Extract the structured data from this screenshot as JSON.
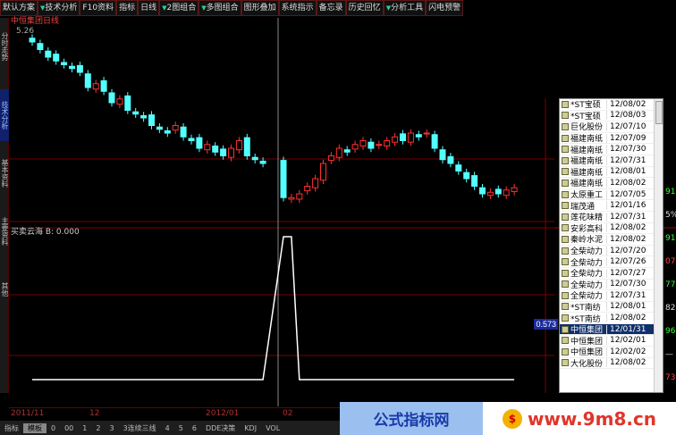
{
  "toolbar": [
    {
      "label": "默认方案",
      "arrow": false
    },
    {
      "label": "技术分析",
      "arrow": true
    },
    {
      "label": "F10资料",
      "arrow": false
    },
    {
      "label": "指标",
      "arrow": false
    },
    {
      "label": "日线",
      "arrow": false
    },
    {
      "label": "2图组合",
      "arrow": true
    },
    {
      "label": "多图组合",
      "arrow": true
    },
    {
      "label": "图形叠加",
      "arrow": false
    },
    {
      "label": "系统指示",
      "arrow": false
    },
    {
      "label": "备忘录",
      "arrow": false
    },
    {
      "label": "历史回忆",
      "arrow": false
    },
    {
      "label": "分析工具",
      "arrow": true
    },
    {
      "label": "闪电预警",
      "arrow": false
    }
  ],
  "left_tabs": [
    "技术分析",
    "基本资料",
    "主要资料",
    "其他"
  ],
  "left_tab_top": "分时走势",
  "chart": {
    "stock_title": "中恒集团日线",
    "price_top": "5.26",
    "up_color": "#ff3030",
    "down_color": "#54ffff",
    "closes": [
      5.1,
      5.0,
      4.9,
      4.85,
      4.8,
      4.75,
      4.7,
      4.5,
      4.55,
      4.45,
      4.3,
      4.35,
      4.2,
      4.15,
      4.1,
      4.0,
      3.95,
      3.9,
      4.0,
      3.85,
      3.8,
      3.7,
      3.75,
      3.65,
      3.6,
      3.7,
      3.8,
      3.6,
      3.55,
      3.5,
      3.05,
      3.05,
      3.1,
      3.2,
      3.3,
      3.5,
      3.6,
      3.7,
      3.65,
      3.75,
      3.8,
      3.7,
      3.75,
      3.8,
      3.85,
      3.8,
      3.9,
      3.85,
      3.9,
      3.7,
      3.55,
      3.5,
      3.4,
      3.3,
      3.2,
      3.1,
      3.12,
      3.1,
      3.15,
      3.18
    ]
  },
  "indicator": {
    "label": "买卖云海 B: 0.000",
    "value_tag": "0.573",
    "values": [
      0,
      0,
      0,
      0,
      0,
      0,
      0,
      0,
      0,
      0,
      0,
      0,
      0,
      0,
      0,
      0,
      0,
      0,
      0,
      0,
      0,
      0,
      0,
      0,
      0,
      0,
      0,
      0,
      0,
      0,
      1,
      1,
      0,
      0,
      0,
      0,
      0,
      0,
      0,
      0,
      0,
      0,
      0,
      0,
      0,
      0,
      0,
      0,
      0,
      0,
      0,
      0,
      0,
      0,
      0,
      0,
      0,
      0,
      0,
      0
    ]
  },
  "date_axis": [
    "2011/11",
    "12",
    "2012/01",
    "02"
  ],
  "bottom_tabs": [
    "指标",
    "模板",
    "0",
    "00",
    "1",
    "2",
    "3",
    "3连续三线",
    "4",
    "5",
    "6",
    "DDE决策",
    "KDJ",
    "VOL"
  ],
  "popup_list": [
    {
      "name": "*ST宝硕",
      "date": "12/08/02"
    },
    {
      "name": "*ST宝硕",
      "date": "12/08/03"
    },
    {
      "name": "巨化股份",
      "date": "12/07/10"
    },
    {
      "name": "福建南纸",
      "date": "12/07/09"
    },
    {
      "name": "福建南纸",
      "date": "12/07/30"
    },
    {
      "name": "福建南纸",
      "date": "12/07/31"
    },
    {
      "name": "福建南纸",
      "date": "12/08/01"
    },
    {
      "name": "福建南纸",
      "date": "12/08/02"
    },
    {
      "name": "太原重工",
      "date": "12/07/05"
    },
    {
      "name": "瑞茂通",
      "date": "12/01/16"
    },
    {
      "name": "莲花味精",
      "date": "12/07/31"
    },
    {
      "name": "安彩高科",
      "date": "12/08/02"
    },
    {
      "name": "秦岭水泥",
      "date": "12/08/02"
    },
    {
      "name": "全柴动力",
      "date": "12/07/20"
    },
    {
      "name": "全柴动力",
      "date": "12/07/26"
    },
    {
      "name": "全柴动力",
      "date": "12/07/27"
    },
    {
      "name": "全柴动力",
      "date": "12/07/30"
    },
    {
      "name": "全柴动力",
      "date": "12/07/31"
    },
    {
      "name": "*ST南纺",
      "date": "12/08/01"
    },
    {
      "name": "*ST南纺",
      "date": "12/08/02"
    },
    {
      "name": "中恒集团",
      "date": "12/01/31",
      "selected": true
    },
    {
      "name": "中恒集团",
      "date": "12/02/01"
    },
    {
      "name": "中恒集团",
      "date": "12/02/02"
    },
    {
      "name": "大化股份",
      "date": "12/08/02"
    }
  ],
  "right_values": [
    {
      "t": "91",
      "c": "#3f3"
    },
    {
      "t": "5%",
      "c": "#ddd"
    },
    {
      "t": "91",
      "c": "#3f3"
    },
    {
      "t": "07",
      "c": "#f44"
    },
    {
      "t": "77",
      "c": "#3f3"
    },
    {
      "t": "82",
      "c": "#ddd"
    },
    {
      "t": "96",
      "c": "#3f3"
    },
    {
      "t": "—",
      "c": "#ddd"
    },
    {
      "t": "73",
      "c": "#f44"
    }
  ],
  "banner": {
    "left": "公式指标网",
    "right": "www.9m8.cn",
    "logo": "$"
  }
}
